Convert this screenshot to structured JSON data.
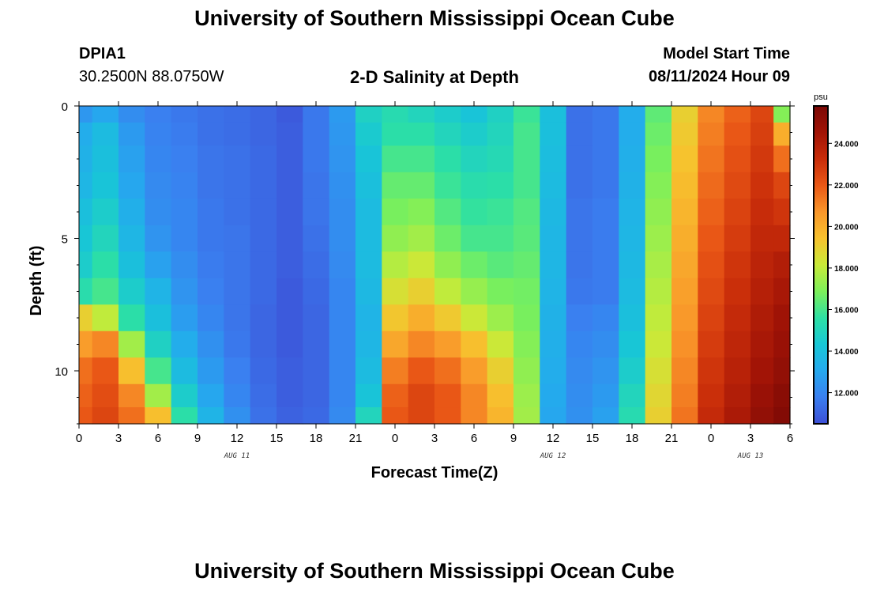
{
  "header": {
    "title": "University of Southern Mississippi Ocean Cube",
    "station": "DPIA1",
    "coordinates": "30.2500N  88.0750W",
    "subtitle": "2-D Salinity at Depth",
    "model_start_label": "Model Start Time",
    "model_start_value": "08/11/2024 Hour 09"
  },
  "footer": {
    "title": "University of Southern Mississippi Ocean Cube"
  },
  "colors": {
    "scale": [
      "#3d4fd6",
      "#3a7ff0",
      "#25a9ee",
      "#18c7d6",
      "#2de0a4",
      "#7df05a",
      "#c9ea38",
      "#f7c22e",
      "#f9962a",
      "#ea5816",
      "#c92d0a",
      "#a11406",
      "#7a0805"
    ],
    "anomaly": "#1a1030"
  },
  "chart_data": {
    "type": "heatmap",
    "xlabel": "Forecast Time(Z)",
    "ylabel": "Depth (ft)",
    "x_ticks": [
      "0",
      "3",
      "6",
      "9",
      "12",
      "15",
      "18",
      "21",
      "0",
      "3",
      "6",
      "9",
      "12",
      "15",
      "18",
      "21",
      "0",
      "3",
      "6"
    ],
    "x_range_hours": [
      0,
      54
    ],
    "date_labels": [
      {
        "text": "AUG 11",
        "hour": 12
      },
      {
        "text": "AUG 12",
        "hour": 36
      },
      {
        "text": "AUG 13",
        "hour": 51
      }
    ],
    "y_ticks": [
      "0",
      "5",
      "10"
    ],
    "y_tick_values": [
      0,
      5,
      10
    ],
    "y_range": [
      0,
      12
    ],
    "colorbar": {
      "unit": "psu",
      "ticks": [
        "24.000",
        "22.000",
        "20.000",
        "18.000",
        "16.000",
        "14.000",
        "12.000"
      ],
      "tick_values": [
        24,
        22,
        20,
        18,
        16,
        14,
        12
      ],
      "range": [
        10.5,
        25.8
      ]
    },
    "depth_rows": [
      0.25,
      1,
      2,
      3,
      4,
      5,
      6,
      7,
      8,
      9,
      10,
      11,
      11.75
    ],
    "columns": [
      {
        "hour": 0,
        "values": [
          12.5,
          13.2,
          13.4,
          13.6,
          14.0,
          14.3,
          14.6,
          15.4,
          19.0,
          20.5,
          21.5,
          21.8,
          22.0
        ]
      },
      {
        "hour": 2,
        "values": [
          13.0,
          13.8,
          14.0,
          14.2,
          14.6,
          15.0,
          15.5,
          16.0,
          18.0,
          21.0,
          22.0,
          22.3,
          22.5
        ]
      },
      {
        "hour": 4,
        "values": [
          12.2,
          12.6,
          12.8,
          13.0,
          13.3,
          13.6,
          14.0,
          14.6,
          15.5,
          17.5,
          19.5,
          21.0,
          21.5
        ]
      },
      {
        "hour": 6,
        "values": [
          11.8,
          11.9,
          12.0,
          12.1,
          12.2,
          12.4,
          12.8,
          13.5,
          14.0,
          14.8,
          16.0,
          17.5,
          19.5
        ]
      },
      {
        "hour": 8,
        "values": [
          11.6,
          11.7,
          11.8,
          11.9,
          12.0,
          12.0,
          12.2,
          12.4,
          12.7,
          13.2,
          13.8,
          14.6,
          15.5
        ]
      },
      {
        "hour": 10,
        "values": [
          11.4,
          11.4,
          11.5,
          11.5,
          11.6,
          11.6,
          11.7,
          11.8,
          12.0,
          12.3,
          12.6,
          13.0,
          13.5
        ]
      },
      {
        "hour": 12,
        "values": [
          11.3,
          11.3,
          11.4,
          11.4,
          11.4,
          11.5,
          11.5,
          11.5,
          11.5,
          11.6,
          11.8,
          12.0,
          12.3
        ]
      },
      {
        "hour": 14,
        "values": [
          11.1,
          11.1,
          11.2,
          11.2,
          11.2,
          11.2,
          11.2,
          11.2,
          11.1,
          11.1,
          11.2,
          11.3,
          11.4
        ]
      },
      {
        "hour": 16,
        "values": [
          10.8,
          10.9,
          10.9,
          10.9,
          10.9,
          10.9,
          10.9,
          10.8,
          10.8,
          10.8,
          10.9,
          10.9,
          11.0
        ]
      },
      {
        "hour": 18,
        "values": [
          11.6,
          11.6,
          11.6,
          11.5,
          11.5,
          11.4,
          11.3,
          11.2,
          11.1,
          11.1,
          11.1,
          11.1,
          11.2
        ]
      },
      {
        "hour": 20,
        "values": [
          12.6,
          12.5,
          12.4,
          12.3,
          12.2,
          12.2,
          12.1,
          12.0,
          12.0,
          12.0,
          12.0,
          12.0,
          12.1
        ]
      },
      {
        "hour": 22,
        "values": [
          14.8,
          14.5,
          14.2,
          14.0,
          13.8,
          13.8,
          13.8,
          13.7,
          13.5,
          13.6,
          13.8,
          14.2,
          15.0
        ]
      },
      {
        "hour": 24,
        "values": [
          15.3,
          15.5,
          16.0,
          16.5,
          16.8,
          17.2,
          17.8,
          18.5,
          19.3,
          20.2,
          21.2,
          21.8,
          22.0
        ]
      },
      {
        "hour": 26,
        "values": [
          15.0,
          15.5,
          16.0,
          16.5,
          17.0,
          17.5,
          18.2,
          19.0,
          20.0,
          21.0,
          22.0,
          22.5,
          22.5
        ]
      },
      {
        "hour": 28,
        "values": [
          14.6,
          15.0,
          15.5,
          15.8,
          16.2,
          16.6,
          17.2,
          18.0,
          19.2,
          20.5,
          21.5,
          22.0,
          22.0
        ]
      },
      {
        "hour": 30,
        "values": [
          14.2,
          14.6,
          15.0,
          15.4,
          15.7,
          16.0,
          16.6,
          17.3,
          18.2,
          19.5,
          20.5,
          21.0,
          21.0
        ]
      },
      {
        "hour": 32,
        "values": [
          14.8,
          15.0,
          15.2,
          15.5,
          15.8,
          16.0,
          16.3,
          16.8,
          17.4,
          18.2,
          19.0,
          19.5,
          19.8
        ]
      },
      {
        "hour": 34,
        "values": [
          15.8,
          16.0,
          16.0,
          16.0,
          16.2,
          16.3,
          16.5,
          16.7,
          16.8,
          17.0,
          17.2,
          17.4,
          17.5
        ]
      },
      {
        "hour": 36,
        "values": [
          14.0,
          14.0,
          13.9,
          13.8,
          13.7,
          13.6,
          13.6,
          13.5,
          13.4,
          13.3,
          13.2,
          13.1,
          13.0
        ]
      },
      {
        "hour": 38,
        "values": [
          11.4,
          11.4,
          11.4,
          11.4,
          11.5,
          11.5,
          11.5,
          11.6,
          11.8,
          12.0,
          12.1,
          12.2,
          12.3
        ]
      },
      {
        "hour": 40,
        "values": [
          11.6,
          11.6,
          11.6,
          11.6,
          11.7,
          11.7,
          11.7,
          11.7,
          12.0,
          12.2,
          12.4,
          12.6,
          12.8
        ]
      },
      {
        "hour": 42,
        "values": [
          13.2,
          13.2,
          13.3,
          13.4,
          13.5,
          13.6,
          13.7,
          13.8,
          14.0,
          14.3,
          14.6,
          15.0,
          15.3
        ]
      },
      {
        "hour": 44,
        "values": [
          16.4,
          16.6,
          16.8,
          17.0,
          17.2,
          17.4,
          17.6,
          17.8,
          18.0,
          18.2,
          18.5,
          18.8,
          19.0
        ]
      },
      {
        "hour": 46,
        "values": [
          19.0,
          19.2,
          19.4,
          19.6,
          19.8,
          20.0,
          20.2,
          20.4,
          20.6,
          20.8,
          21.0,
          21.2,
          21.4
        ]
      },
      {
        "hour": 48,
        "values": [
          21.0,
          21.2,
          21.4,
          21.6,
          21.8,
          22.0,
          22.2,
          22.4,
          22.6,
          22.8,
          23.0,
          23.2,
          23.4
        ]
      },
      {
        "hour": 50,
        "values": [
          21.8,
          22.0,
          22.2,
          22.4,
          22.6,
          22.8,
          23.0,
          23.2,
          23.4,
          23.6,
          23.8,
          24.0,
          24.2
        ]
      },
      {
        "hour": 52,
        "values": [
          22.5,
          22.7,
          22.9,
          23.1,
          23.3,
          23.5,
          23.7,
          23.9,
          24.1,
          24.3,
          24.5,
          24.8,
          25.0
        ]
      },
      {
        "hour": 53.5,
        "values": [
          17.0,
          20.0,
          21.5,
          22.5,
          23.0,
          23.5,
          24.0,
          24.3,
          24.6,
          24.8,
          25.0,
          25.3,
          25.5
        ]
      }
    ]
  }
}
